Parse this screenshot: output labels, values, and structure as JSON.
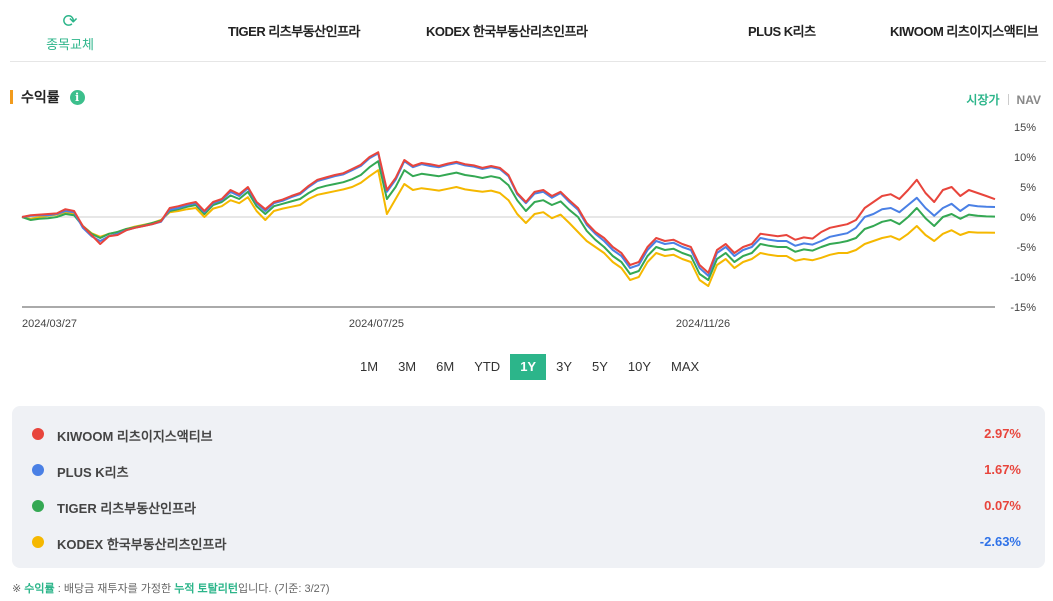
{
  "header": {
    "swap_label": "종목교체",
    "swap_icon": "refresh-icon",
    "fund_tabs": [
      "TIGER 리츠부동산인프라",
      "KODEX 한국부동산리츠인프라",
      "PLUS K리츠",
      "KIWOOM 리츠이지스액티브"
    ]
  },
  "section": {
    "title": "수익률",
    "info_icon": "info-icon",
    "basis_options": [
      "시장가",
      "NAV"
    ],
    "basis_selected": "시장가"
  },
  "chart_data": {
    "type": "line",
    "x_ticks": [
      "2024/03/27",
      "2024/07/25",
      "2024/11/26"
    ],
    "y_ticks": [
      "15%",
      "10%",
      "5%",
      "0%",
      "-5%",
      "-10%",
      "-15%"
    ],
    "ylim": [
      -15,
      15
    ],
    "grid": false,
    "series": [
      {
        "name": "KIWOOM 리츠이지스액티브",
        "color": "#e8453c",
        "values": [
          0,
          0.3,
          0.4,
          0.5,
          0.6,
          1.3,
          1,
          -1.5,
          -3,
          -4.5,
          -3.2,
          -3,
          -2.2,
          -1.8,
          -1.5,
          -1.2,
          -0.7,
          1.5,
          1.8,
          2.2,
          2.5,
          1,
          2.5,
          3,
          4.5,
          3.8,
          5,
          2.5,
          1.3,
          2.5,
          2.9,
          3.5,
          4,
          5.2,
          6.2,
          6.6,
          7,
          7.3,
          8,
          8.7,
          10,
          10.8,
          4.5,
          6.5,
          9.5,
          8.5,
          9,
          8.8,
          8.5,
          8.9,
          9.2,
          8.8,
          8.6,
          8.2,
          8.5,
          8.2,
          7,
          4,
          2.5,
          4.2,
          4.5,
          3.5,
          4.2,
          2.8,
          1.5,
          -1,
          -2.5,
          -3.5,
          -5,
          -6,
          -8,
          -7.5,
          -5,
          -3.5,
          -4,
          -3.8,
          -4.5,
          -5,
          -8,
          -9.3,
          -5.5,
          -4.5,
          -6,
          -5,
          -4.5,
          -2.8,
          -3,
          -3.2,
          -3,
          -3.8,
          -3.4,
          -3.6,
          -2.5,
          -1.8,
          -1.5,
          -1.2,
          -0.5,
          1.5,
          2.5,
          3.5,
          3.8,
          3,
          4.5,
          6.2,
          4,
          2.5,
          4.5,
          5,
          3.5,
          4.5,
          4,
          3.5,
          2.97
        ]
      },
      {
        "name": "PLUS K리츠",
        "color": "#4a80e5",
        "values": [
          0,
          0.2,
          0.3,
          0.3,
          0.5,
          1,
          0.8,
          -1.8,
          -3.2,
          -4,
          -3.2,
          -2.8,
          -2.2,
          -1.8,
          -1.5,
          -1.2,
          -0.8,
          1.2,
          1.5,
          2,
          2.3,
          0.8,
          2.3,
          2.8,
          4.2,
          3.5,
          4.8,
          2.3,
          1,
          2.3,
          2.7,
          3.3,
          3.8,
          5,
          6,
          6.4,
          6.8,
          7.1,
          7.8,
          8.5,
          9.8,
          10.6,
          4.2,
          6.2,
          9.3,
          8.3,
          8.8,
          8.5,
          8.3,
          8.7,
          9,
          8.6,
          8.4,
          8,
          8.3,
          8,
          6.8,
          3.8,
          2.3,
          3.9,
          4.2,
          3.2,
          4,
          2.5,
          1.2,
          -1.3,
          -2.8,
          -4,
          -5.5,
          -6.5,
          -8.5,
          -8,
          -5.5,
          -4,
          -4.5,
          -4.3,
          -5,
          -5.5,
          -8.5,
          -9.8,
          -6,
          -5,
          -6.5,
          -5.5,
          -5,
          -3.5,
          -3.8,
          -4,
          -4,
          -4.8,
          -4.4,
          -4.6,
          -4,
          -3.3,
          -3,
          -2.7,
          -1.8,
          0,
          0.5,
          1.3,
          1.5,
          0.8,
          2,
          3.2,
          1.5,
          0.2,
          1.5,
          2.2,
          1,
          2,
          1.8,
          1.7,
          1.67
        ]
      },
      {
        "name": "TIGER 리츠부동산인프라",
        "color": "#34a853",
        "values": [
          0,
          -0.5,
          -0.3,
          -0.2,
          0,
          0.5,
          0.3,
          -1.5,
          -2.8,
          -3.5,
          -2.8,
          -2.5,
          -2,
          -1.7,
          -1.4,
          -1,
          -0.6,
          1,
          1.3,
          1.7,
          2,
          0.5,
          2,
          2.5,
          3.6,
          3,
          4.2,
          1.8,
          0.5,
          1.8,
          2.2,
          2.6,
          3,
          4,
          4.8,
          5.2,
          5.5,
          5.8,
          6.3,
          7,
          8.3,
          9.3,
          3,
          5,
          7.8,
          6.8,
          7.2,
          7,
          6.8,
          7.1,
          7.4,
          7,
          6.8,
          6.5,
          6.8,
          6.5,
          5.3,
          2.8,
          1,
          2.5,
          2.8,
          2,
          2.6,
          1.2,
          0,
          -2.3,
          -3.8,
          -5,
          -6.5,
          -7.5,
          -9.5,
          -9,
          -6.5,
          -5,
          -5.5,
          -5.3,
          -6,
          -6.5,
          -9.5,
          -10.5,
          -7,
          -6,
          -7.5,
          -6.5,
          -6,
          -4.5,
          -4.8,
          -5,
          -5,
          -5.8,
          -5.4,
          -5.6,
          -5,
          -4.5,
          -4.3,
          -4,
          -3.5,
          -2,
          -1.5,
          -0.8,
          -0.5,
          -1.2,
          0,
          1.5,
          -0.2,
          -1.5,
          0,
          0.5,
          -0.3,
          0.4,
          0.2,
          0.1,
          0.07
        ]
      },
      {
        "name": "KODEX 한국부동산리츠인프라",
        "color": "#f5b800",
        "values": [
          0,
          -0.3,
          0,
          0.2,
          0.4,
          0.8,
          0.6,
          -1.5,
          -2.7,
          -3.3,
          -2.8,
          -2.5,
          -2,
          -1.6,
          -1.3,
          -1,
          -0.5,
          0.8,
          1,
          1.3,
          1.5,
          0,
          1.4,
          1.8,
          2.8,
          2.3,
          3.3,
          1,
          -0.5,
          1,
          1.4,
          1.7,
          2,
          3,
          3.7,
          4,
          4.3,
          4.6,
          5,
          5.7,
          6.8,
          7.8,
          0.5,
          3,
          5.5,
          4.5,
          4.8,
          4.6,
          4.4,
          4.7,
          5,
          4.6,
          4.4,
          4.2,
          4.4,
          4,
          2.8,
          0.5,
          -1,
          0.5,
          0.8,
          -0.2,
          0.4,
          -1,
          -2.5,
          -4,
          -5,
          -6,
          -7.5,
          -8.5,
          -10.5,
          -10,
          -7.5,
          -6,
          -6.5,
          -6.3,
          -7,
          -7.5,
          -10.5,
          -11.5,
          -8,
          -7,
          -8.5,
          -7.5,
          -7,
          -6,
          -6.3,
          -6.5,
          -6.5,
          -7.3,
          -7,
          -7.2,
          -6.8,
          -6.3,
          -6,
          -6,
          -5.5,
          -4.5,
          -4,
          -3.5,
          -3.2,
          -3.8,
          -2.8,
          -1.5,
          -3,
          -4,
          -2.8,
          -2.2,
          -3,
          -2.5,
          -2.6,
          -2.6,
          -2.63
        ]
      }
    ]
  },
  "period": {
    "options": [
      "1M",
      "3M",
      "6M",
      "YTD",
      "1Y",
      "3Y",
      "5Y",
      "10Y",
      "MAX"
    ],
    "selected": "1Y"
  },
  "legend": {
    "items": [
      {
        "name": "KIWOOM 리츠이지스액티브",
        "value": "2.97%",
        "color": "#e8453c",
        "value_color": "#e8453c"
      },
      {
        "name": "PLUS K리츠",
        "value": "1.67%",
        "color": "#4a80e5",
        "value_color": "#e8453c"
      },
      {
        "name": "TIGER 리츠부동산인프라",
        "value": "0.07%",
        "color": "#34a853",
        "value_color": "#e8453c"
      },
      {
        "name": "KODEX 한국부동산리츠인프라",
        "value": "-2.63%",
        "color": "#f5b800",
        "value_color": "#2f72e8"
      }
    ]
  },
  "footnote": {
    "prefix": "※ ",
    "term": "수익률",
    "mid": " : 배당금 재투자를 가정한 ",
    "highlight": "누적 토탈리턴",
    "suffix": "입니다. (기준: 3/27)"
  },
  "colors": {
    "accent": "#2cb58a",
    "title_bar": "#f29b1d",
    "legend_bg": "#eff1f5"
  }
}
